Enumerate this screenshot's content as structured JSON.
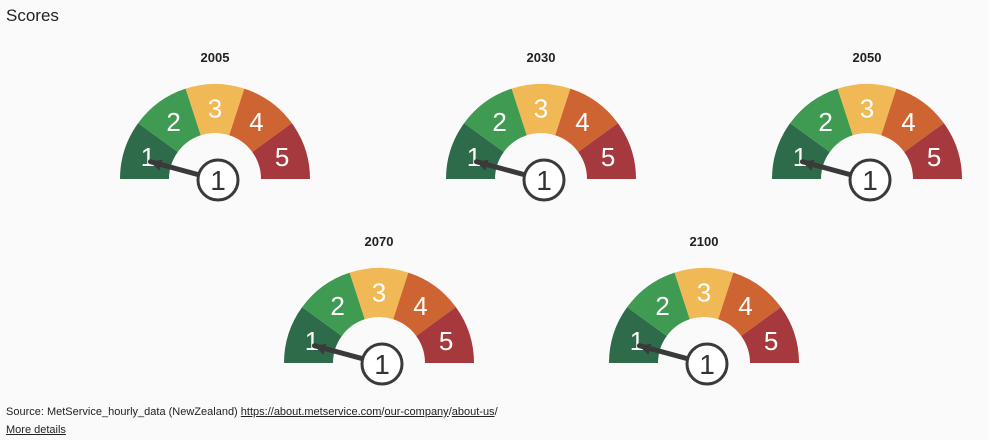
{
  "header": {
    "title": "Scores"
  },
  "chart_data": [
    {
      "type": "gauge",
      "title": "2005",
      "value": 1,
      "min": 1,
      "max": 5,
      "bands": [
        {
          "label": "1",
          "color": "#2e6b4b"
        },
        {
          "label": "2",
          "color": "#3f9a52"
        },
        {
          "label": "3",
          "color": "#f0b955"
        },
        {
          "label": "4",
          "color": "#cf6433"
        },
        {
          "label": "5",
          "color": "#a6393d"
        }
      ]
    },
    {
      "type": "gauge",
      "title": "2030",
      "value": 1,
      "min": 1,
      "max": 5,
      "bands": [
        {
          "label": "1",
          "color": "#2e6b4b"
        },
        {
          "label": "2",
          "color": "#3f9a52"
        },
        {
          "label": "3",
          "color": "#f0b955"
        },
        {
          "label": "4",
          "color": "#cf6433"
        },
        {
          "label": "5",
          "color": "#a6393d"
        }
      ]
    },
    {
      "type": "gauge",
      "title": "2050",
      "value": 1,
      "min": 1,
      "max": 5,
      "bands": [
        {
          "label": "1",
          "color": "#2e6b4b"
        },
        {
          "label": "2",
          "color": "#3f9a52"
        },
        {
          "label": "3",
          "color": "#f0b955"
        },
        {
          "label": "4",
          "color": "#cf6433"
        },
        {
          "label": "5",
          "color": "#a6393d"
        }
      ]
    },
    {
      "type": "gauge",
      "title": "2070",
      "value": 1,
      "min": 1,
      "max": 5,
      "bands": [
        {
          "label": "1",
          "color": "#2e6b4b"
        },
        {
          "label": "2",
          "color": "#3f9a52"
        },
        {
          "label": "3",
          "color": "#f0b955"
        },
        {
          "label": "4",
          "color": "#cf6433"
        },
        {
          "label": "5",
          "color": "#a6393d"
        }
      ]
    },
    {
      "type": "gauge",
      "title": "2100",
      "value": 1,
      "min": 1,
      "max": 5,
      "bands": [
        {
          "label": "1",
          "color": "#2e6b4b"
        },
        {
          "label": "2",
          "color": "#3f9a52"
        },
        {
          "label": "3",
          "color": "#f0b955"
        },
        {
          "label": "4",
          "color": "#cf6433"
        },
        {
          "label": "5",
          "color": "#a6393d"
        }
      ]
    }
  ],
  "footer": {
    "source_prefix": "Source: MetService_hourly_data (NewZealand)",
    "link_parts": [
      "https://about.metservice.com",
      "/",
      "our-company",
      "/",
      "about-us",
      "/"
    ],
    "more_details": "More details"
  }
}
